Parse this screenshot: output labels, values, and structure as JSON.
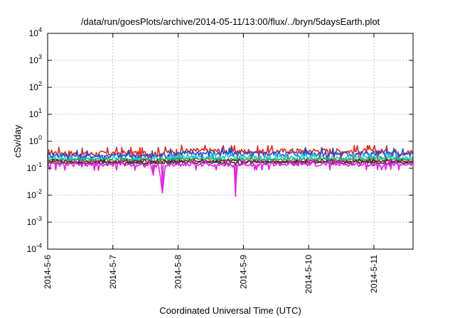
{
  "chart_data": {
    "type": "line",
    "title": "/data/run/goesPlots/archive/2014-05-11/13:00/flux/../bryn/5daysEarth.plot",
    "xlabel": "Coordinated Universal Time (UTC)",
    "ylabel": "cSv/day",
    "y_scale": "log",
    "ylim": [
      0.0001,
      10000
    ],
    "xlim": [
      0,
      5.6
    ],
    "grid": true,
    "x_ticks": [
      {
        "pos": 0,
        "label": "2014-5-6"
      },
      {
        "pos": 1,
        "label": "2014-5-7"
      },
      {
        "pos": 2,
        "label": "2014-5-8"
      },
      {
        "pos": 3,
        "label": "2014-5-9"
      },
      {
        "pos": 4,
        "label": "2014-5-10"
      },
      {
        "pos": 5,
        "label": "2014-5-11"
      }
    ],
    "y_ticks": [
      {
        "value": 0.0001,
        "base": "10",
        "exp": "-4"
      },
      {
        "value": 0.001,
        "base": "10",
        "exp": "-3"
      },
      {
        "value": 0.01,
        "base": "10",
        "exp": "-2"
      },
      {
        "value": 0.1,
        "base": "10",
        "exp": "-1"
      },
      {
        "value": 1,
        "base": "10",
        "exp": "0"
      },
      {
        "value": 10,
        "base": "10",
        "exp": "1"
      },
      {
        "value": 100,
        "base": "10",
        "exp": "2"
      },
      {
        "value": 1000,
        "base": "10",
        "exp": "3"
      },
      {
        "value": 10000,
        "base": "10",
        "exp": "4"
      }
    ],
    "series": [
      {
        "color": "#e8241a",
        "base": 0.4,
        "amp": 0.1,
        "x": [
          0,
          0.6,
          1.2,
          1.6,
          2.0,
          2.5,
          3.0,
          3.5,
          4.0,
          4.5,
          5.0,
          5.6
        ],
        "values": [
          0.4,
          0.34,
          0.38,
          0.35,
          0.44,
          0.45,
          0.42,
          0.43,
          0.45,
          0.43,
          0.44,
          0.39
        ]
      },
      {
        "color": "#1f4fd6",
        "base": 0.32,
        "amp": 0.08,
        "x": [
          0,
          0.6,
          1.2,
          1.6,
          2.0,
          2.5,
          3.0,
          3.5,
          4.0,
          4.5,
          5.0,
          5.6
        ],
        "values": [
          0.32,
          0.28,
          0.3,
          0.28,
          0.36,
          0.37,
          0.34,
          0.35,
          0.37,
          0.35,
          0.36,
          0.33
        ]
      },
      {
        "color": "#18c8e0",
        "base": 0.24,
        "amp": 0.04,
        "x": [
          0,
          0.6,
          1.2,
          1.6,
          2.0,
          2.5,
          3.0,
          3.5,
          4.0,
          4.5,
          5.0,
          5.6
        ],
        "values": [
          0.24,
          0.22,
          0.23,
          0.22,
          0.26,
          0.26,
          0.25,
          0.25,
          0.26,
          0.25,
          0.25,
          0.24
        ]
      },
      {
        "color": "#2aa84a",
        "base": 0.21,
        "amp": 0.02,
        "x": [
          0,
          0.6,
          1.2,
          1.6,
          2.0,
          2.5,
          3.0,
          3.5,
          4.0,
          4.5,
          5.0,
          5.6
        ],
        "values": [
          0.21,
          0.2,
          0.21,
          0.2,
          0.22,
          0.22,
          0.21,
          0.21,
          0.22,
          0.21,
          0.22,
          0.21
        ]
      },
      {
        "color": "#8b1a1a",
        "base": 0.18,
        "amp": 0.015,
        "x": [
          0,
          0.6,
          1.2,
          1.6,
          2.0,
          2.5,
          3.0,
          3.5,
          4.0,
          4.5,
          5.0,
          5.6
        ],
        "values": [
          0.18,
          0.175,
          0.18,
          0.175,
          0.185,
          0.185,
          0.18,
          0.18,
          0.185,
          0.18,
          0.18,
          0.18
        ]
      },
      {
        "color": "#333333",
        "base": 0.16,
        "amp": 0.015,
        "x": [
          0,
          0.6,
          1.2,
          1.6,
          2.0,
          2.5,
          3.0,
          3.5,
          4.0,
          4.5,
          5.0,
          5.6
        ],
        "values": [
          0.16,
          0.155,
          0.16,
          0.155,
          0.165,
          0.165,
          0.16,
          0.16,
          0.165,
          0.16,
          0.16,
          0.16
        ]
      },
      {
        "color": "#e81ce8",
        "base": 0.14,
        "amp": 0.025,
        "x": [
          0,
          0.6,
          1.2,
          1.58,
          1.62,
          1.64,
          1.7,
          1.76,
          1.8,
          2.0,
          2.5,
          2.86,
          2.88,
          2.9,
          2.94,
          3.0,
          3.5,
          4.0,
          4.5,
          5.0,
          5.6
        ],
        "values": [
          0.14,
          0.13,
          0.14,
          0.13,
          0.055,
          0.13,
          0.13,
          0.012,
          0.13,
          0.14,
          0.14,
          0.13,
          0.009,
          0.13,
          0.14,
          0.14,
          0.14,
          0.14,
          0.14,
          0.14,
          0.14
        ]
      }
    ]
  }
}
